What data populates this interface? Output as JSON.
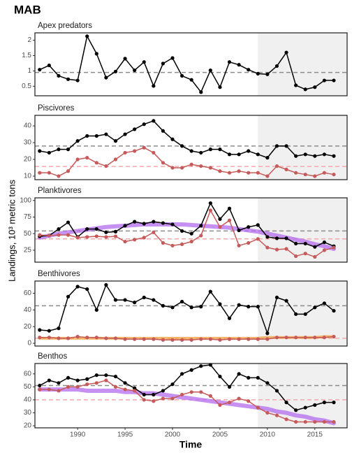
{
  "title": "MAB",
  "xlabel": "Time",
  "ylabel": "Landings, 10³ metric tons",
  "chart_data": [
    {
      "type": "line",
      "title": "Apex predators",
      "x": [
        1986,
        1987,
        1988,
        1989,
        1990,
        1991,
        1992,
        1993,
        1994,
        1995,
        1996,
        1997,
        1998,
        1999,
        2000,
        2001,
        2002,
        2003,
        2004,
        2005,
        2006,
        2007,
        2008,
        2009,
        2010,
        2011,
        2012,
        2013,
        2014,
        2015,
        2016,
        2017
      ],
      "xlim": [
        1985.5,
        2018.4
      ],
      "ylim": [
        0.19,
        2.24
      ],
      "yticks": [
        0.5,
        1,
        1.5,
        2
      ],
      "shade_from": 2009,
      "hlines": [
        {
          "value": 0.95,
          "color": "#8c8c8c"
        }
      ],
      "series": [
        {
          "color": "#000000",
          "markers": true,
          "width": 1.5,
          "values": [
            1.04,
            1.18,
            0.84,
            0.73,
            0.69,
            2.13,
            1.56,
            0.78,
            0.98,
            1.4,
            1.02,
            1.29,
            0.51,
            1.24,
            1.42,
            0.84,
            0.71,
            0.31,
            1.02,
            0.47,
            1.29,
            1.2,
            1.04,
            0.91,
            0.89,
            1.16,
            1.6,
            0.53,
            0.4,
            0.47,
            0.69,
            0.69
          ]
        }
      ]
    },
    {
      "type": "line",
      "title": "Piscivores",
      "x": [
        1986,
        1987,
        1988,
        1989,
        1990,
        1991,
        1992,
        1993,
        1994,
        1995,
        1996,
        1997,
        1998,
        1999,
        2000,
        2001,
        2002,
        2003,
        2004,
        2005,
        2006,
        2007,
        2008,
        2009,
        2010,
        2011,
        2012,
        2013,
        2014,
        2015,
        2016,
        2017
      ],
      "xlim": [
        1985.5,
        2018.4
      ],
      "ylim": [
        7.9,
        46.3
      ],
      "yticks": [
        10,
        20,
        30,
        40
      ],
      "shade_from": 2009,
      "hlines": [
        {
          "value": 28,
          "color": "#8c8c8c"
        },
        {
          "value": 15.8,
          "color": "#f2a9a9"
        }
      ],
      "series": [
        {
          "color": "#000000",
          "markers": true,
          "width": 1.5,
          "values": [
            25,
            24,
            26,
            26,
            31,
            34,
            34,
            35,
            31,
            35,
            38,
            41,
            43,
            37,
            32,
            28,
            25,
            24,
            26,
            26,
            23,
            23,
            25,
            23,
            21,
            28,
            28,
            22,
            23,
            22,
            23,
            22
          ]
        },
        {
          "color": "#c65a5a",
          "markers": true,
          "width": 1.5,
          "values": [
            12,
            12,
            10,
            13,
            20,
            21,
            18,
            16,
            20,
            24,
            25,
            27,
            24,
            18,
            15,
            15,
            17,
            16,
            15,
            13,
            12,
            13,
            12,
            12,
            10,
            16,
            14,
            12,
            11,
            10,
            12,
            11
          ]
        }
      ]
    },
    {
      "type": "line",
      "title": "Planktivores",
      "x": [
        1986,
        1987,
        1988,
        1989,
        1990,
        1991,
        1992,
        1993,
        1994,
        1995,
        1996,
        1997,
        1998,
        1999,
        2000,
        2001,
        2002,
        2003,
        2004,
        2005,
        2006,
        2007,
        2008,
        2009,
        2010,
        2011,
        2012,
        2013,
        2014,
        2015,
        2016,
        2017
      ],
      "xlim": [
        1985.5,
        2018.4
      ],
      "ylim": [
        7,
        104
      ],
      "yticks": [
        25,
        50,
        75,
        100
      ],
      "shade_from": 2009,
      "hlines": [
        {
          "value": 54,
          "color": "#8c8c8c"
        },
        {
          "value": 42,
          "color": "#f2a9a9"
        }
      ],
      "series": [
        {
          "color": "#b46cf0",
          "markers": false,
          "width": 6,
          "values": [
            44,
            47,
            50,
            52,
            54,
            56,
            58,
            60,
            61,
            62,
            63,
            64,
            64,
            64,
            64,
            64,
            63,
            62,
            61,
            60,
            59,
            57,
            55,
            53,
            50,
            47,
            44,
            41,
            38,
            34,
            31,
            27
          ]
        },
        {
          "color": "#000000",
          "markers": true,
          "width": 1.5,
          "values": [
            46,
            47,
            57,
            67,
            45,
            57,
            57,
            52,
            53,
            62,
            68,
            65,
            68,
            66,
            64,
            54,
            50,
            62,
            96,
            72,
            88,
            55,
            60,
            63,
            45,
            43,
            43,
            35,
            35,
            30,
            37,
            31
          ]
        },
        {
          "color": "#c65a5a",
          "markers": true,
          "width": 1.5,
          "values": [
            48,
            47,
            48,
            48,
            44,
            45,
            46,
            45,
            46,
            38,
            41,
            44,
            52,
            36,
            32,
            34,
            38,
            47,
            85,
            60,
            70,
            32,
            36,
            42,
            29,
            26,
            27,
            16,
            20,
            15,
            25,
            29
          ]
        }
      ]
    },
    {
      "type": "line",
      "title": "Benthivores",
      "x": [
        1986,
        1987,
        1988,
        1989,
        1990,
        1991,
        1992,
        1993,
        1994,
        1995,
        1996,
        1997,
        1998,
        1999,
        2000,
        2001,
        2002,
        2003,
        2004,
        2005,
        2006,
        2007,
        2008,
        2009,
        2010,
        2011,
        2012,
        2013,
        2014,
        2015,
        2016,
        2017
      ],
      "xlim": [
        1985.5,
        2018.4
      ],
      "ylim": [
        -3.3,
        74.7
      ],
      "yticks": [
        0,
        20,
        40,
        60
      ],
      "shade_from": 2009,
      "hlines": [
        {
          "value": 45,
          "color": "#8c8c8c"
        },
        {
          "value": 6,
          "color": "#f2a9a9"
        }
      ],
      "series": [
        {
          "color": "#f0a040",
          "markers": false,
          "width": 4,
          "values": [
            6,
            6,
            6,
            6,
            6,
            6,
            6,
            6,
            6,
            6,
            6,
            6,
            6,
            6,
            6,
            6,
            6,
            6,
            6,
            6,
            6,
            6,
            6,
            6,
            7,
            7,
            7,
            7,
            7,
            7,
            8,
            8
          ]
        },
        {
          "color": "#000000",
          "markers": true,
          "width": 1.5,
          "values": [
            16,
            15,
            18,
            56,
            68,
            65,
            40,
            70,
            52,
            52,
            49,
            55,
            52,
            45,
            43,
            50,
            43,
            44,
            62,
            47,
            30,
            46,
            44,
            44,
            12,
            55,
            51,
            35,
            35,
            43,
            48,
            39
          ]
        },
        {
          "color": "#c65a5a",
          "markers": true,
          "width": 1.5,
          "values": [
            7,
            7,
            6,
            6,
            8,
            7,
            7,
            6,
            6,
            5,
            5,
            5,
            5,
            4,
            4,
            4,
            4,
            5,
            5,
            4,
            5,
            5,
            5,
            5,
            5,
            7,
            7,
            7,
            7,
            7,
            7,
            8
          ]
        }
      ]
    },
    {
      "type": "line",
      "title": "Benthos",
      "x": [
        1986,
        1987,
        1988,
        1989,
        1990,
        1991,
        1992,
        1993,
        1994,
        1995,
        1996,
        1997,
        1998,
        1999,
        2000,
        2001,
        2002,
        2003,
        2004,
        2005,
        2006,
        2007,
        2008,
        2009,
        2010,
        2011,
        2012,
        2013,
        2014,
        2015,
        2016,
        2017
      ],
      "xlim": [
        1985.5,
        2018.4
      ],
      "ylim": [
        18.4,
        68
      ],
      "yticks": [
        20,
        30,
        40,
        50,
        60
      ],
      "xticks": [
        1990,
        1995,
        2000,
        2005,
        2010,
        2015
      ],
      "shade_from": 2009,
      "hlines": [
        {
          "value": 51,
          "color": "#8c8c8c"
        },
        {
          "value": 40,
          "color": "#f2a9a9"
        }
      ],
      "series": [
        {
          "color": "#b46cf0",
          "markers": false,
          "width": 6,
          "values": [
            48,
            48,
            48,
            48,
            48,
            47,
            47,
            47,
            47,
            46,
            46,
            45,
            45,
            44,
            43,
            42,
            41,
            40,
            39,
            38,
            37,
            36,
            35,
            34,
            33,
            31,
            30,
            28,
            27,
            25,
            24,
            22
          ]
        },
        {
          "color": "#000000",
          "markers": true,
          "width": 1.5,
          "values": [
            51,
            55,
            53,
            57,
            55,
            56,
            59,
            59,
            58,
            53,
            49,
            44,
            44,
            47,
            52,
            60,
            63,
            66,
            67,
            58,
            50,
            60,
            57,
            57,
            53,
            47,
            38,
            32,
            34,
            36,
            38,
            38
          ]
        },
        {
          "color": "#c65a5a",
          "markers": true,
          "width": 1.5,
          "values": [
            48,
            48,
            47,
            50,
            50,
            52,
            53,
            55,
            50,
            48,
            47,
            40,
            39,
            41,
            41,
            44,
            46,
            46,
            43,
            36,
            38,
            41,
            39,
            34,
            30,
            28,
            25,
            23,
            23,
            23,
            23,
            23
          ]
        }
      ]
    }
  ]
}
